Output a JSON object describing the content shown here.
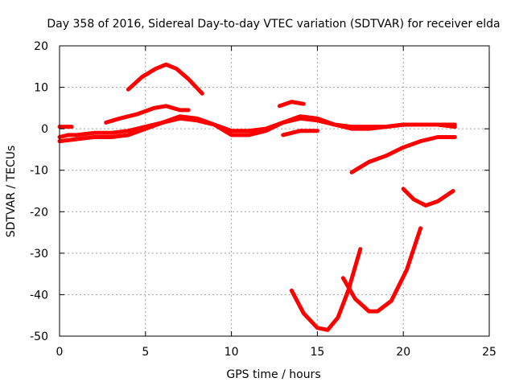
{
  "chart_data": {
    "type": "line",
    "title": "Day 358 of 2016, Sidereal Day-to-day VTEC variation (SDTVAR) for receiver elda",
    "xlabel": "GPS time / hours",
    "ylabel": "SDTVAR / TECUs",
    "xlim": [
      0,
      25
    ],
    "ylim": [
      -50,
      20
    ],
    "xticks": [
      0,
      5,
      10,
      15,
      20,
      25
    ],
    "yticks": [
      -50,
      -40,
      -30,
      -20,
      -10,
      0,
      10,
      20
    ],
    "xtick_labels": [
      "0",
      "5",
      "10",
      "15",
      "20",
      "25"
    ],
    "ytick_labels": [
      "-50",
      "-40",
      "-30",
      "-20",
      "-10",
      "0",
      "10",
      "20"
    ],
    "grid": true,
    "color": "#ff0000",
    "series": [
      {
        "name": "s1",
        "x": [
          0,
          0.5,
          1,
          2,
          3,
          4,
          5,
          6,
          7,
          8,
          9,
          10,
          11,
          12,
          13,
          14,
          15,
          16,
          17,
          18,
          19,
          20,
          21,
          22,
          23
        ],
        "y": [
          -2,
          -1.5,
          -1.5,
          -1,
          -1,
          -0.5,
          0.5,
          1.5,
          2.5,
          2,
          1,
          -0.5,
          -0.5,
          0,
          1.5,
          2.5,
          2,
          1,
          0.5,
          0.5,
          0.5,
          1,
          1,
          1,
          0.5
        ]
      },
      {
        "name": "s2",
        "x": [
          0,
          1,
          2,
          3,
          4,
          5,
          6,
          7,
          8,
          9,
          10,
          11,
          12,
          13,
          14,
          15,
          16,
          17,
          18,
          19,
          20,
          21,
          22,
          23
        ],
        "y": [
          -3,
          -2.5,
          -2,
          -2,
          -1.5,
          0,
          1.5,
          3,
          2.5,
          1,
          -1.5,
          -1.5,
          -0.5,
          1.5,
          3,
          2.5,
          1,
          0,
          0,
          0.5,
          1,
          1,
          1,
          1
        ]
      },
      {
        "name": "s3",
        "x": [
          2.7,
          3.5,
          4.5,
          5.5,
          6.2,
          7,
          7.5
        ],
        "y": [
          1.5,
          2.5,
          3.5,
          5,
          5.5,
          4.5,
          4.5
        ]
      },
      {
        "name": "s4",
        "x": [
          0,
          0.7
        ],
        "y": [
          0.5,
          0.5
        ]
      },
      {
        "name": "s5",
        "x": [
          4,
          4.8,
          5.6,
          6.2,
          6.8,
          7.5,
          8.3
        ],
        "y": [
          9.5,
          12.5,
          14.5,
          15.5,
          14.5,
          12,
          8.5
        ]
      },
      {
        "name": "s6",
        "x": [
          12.8,
          13.5,
          14.2
        ],
        "y": [
          5.5,
          6.5,
          6
        ]
      },
      {
        "name": "s7",
        "x": [
          13,
          14,
          15
        ],
        "y": [
          -1.5,
          -0.5,
          -0.5
        ]
      },
      {
        "name": "s8",
        "x": [
          17,
          18,
          19,
          20,
          21,
          22,
          23
        ],
        "y": [
          -10.5,
          -8,
          -6.5,
          -4.5,
          -3,
          -2,
          -2
        ]
      },
      {
        "name": "s9",
        "x": [
          20,
          20.6,
          21.3,
          22,
          22.9
        ],
        "y": [
          -14.5,
          -17,
          -18.5,
          -17.5,
          -15
        ]
      },
      {
        "name": "s10",
        "x": [
          13.5,
          14.2,
          15,
          15.6,
          16.2,
          16.8,
          17.5
        ],
        "y": [
          -39,
          -44.5,
          -48,
          -48.5,
          -45.5,
          -39,
          -29
        ]
      },
      {
        "name": "s11",
        "x": [
          16.5,
          17.2,
          18,
          18.5,
          19.3,
          20.2,
          21
        ],
        "y": [
          -36,
          -41,
          -44,
          -44,
          -41.5,
          -34,
          -24
        ]
      }
    ]
  }
}
